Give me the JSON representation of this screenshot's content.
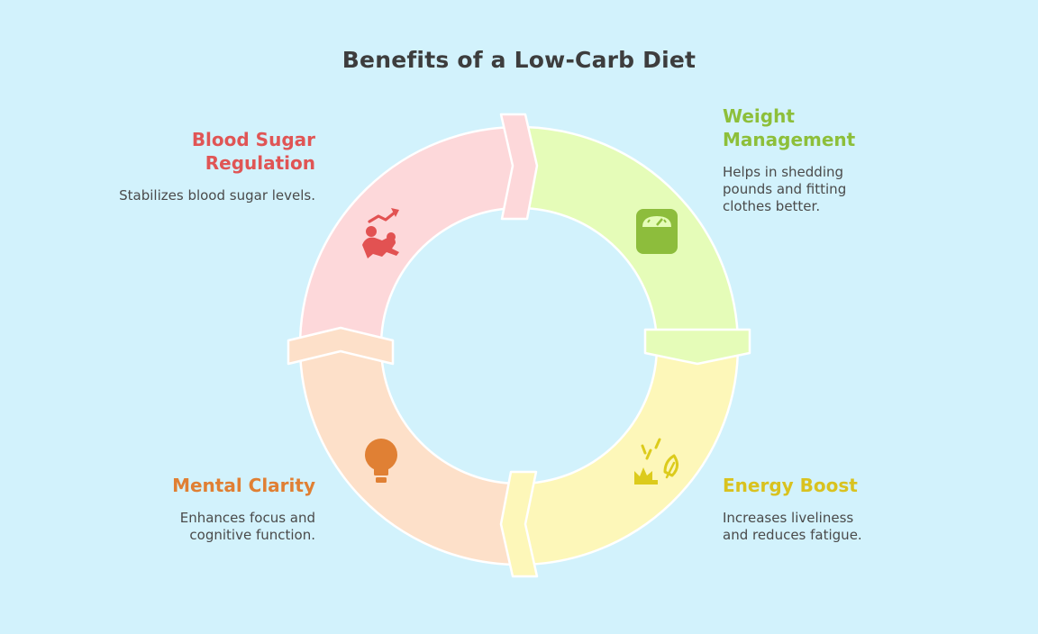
{
  "title": "Benefits of a Low-Carb Diet",
  "segments": [
    {
      "id": "blood-sugar",
      "title_line1": "Blood Sugar",
      "title_line2": "Regulation",
      "description": "Stabilizes blood sugar levels.",
      "title_color": "#e05555",
      "fill_color": "#fdd8da",
      "icon": "blood-sugar-trend-icon",
      "icon_color": "#e25252"
    },
    {
      "id": "weight",
      "title_line1": "Weight",
      "title_line2": "Management",
      "description": "Helps in shedding pounds and fitting clothes better.",
      "title_color": "#8dbf3a",
      "fill_color": "#e5fcb8",
      "icon": "weight-scale-icon",
      "icon_color": "#8dbd3c"
    },
    {
      "id": "energy",
      "title_line1": "Energy Boost",
      "title_line2": "",
      "description": "Increases liveliness and reduces fatigue.",
      "title_color": "#d9c21f",
      "fill_color": "#fdf7b9",
      "icon": "energy-burst-icon",
      "icon_color": "#dccb1c"
    },
    {
      "id": "mental",
      "title_line1": "Mental Clarity",
      "title_line2": "",
      "description": "Enhances focus and cognitive function.",
      "title_color": "#e07f33",
      "fill_color": "#fde0c9",
      "icon": "lightbulb-icon",
      "icon_color": "#e08034"
    }
  ]
}
